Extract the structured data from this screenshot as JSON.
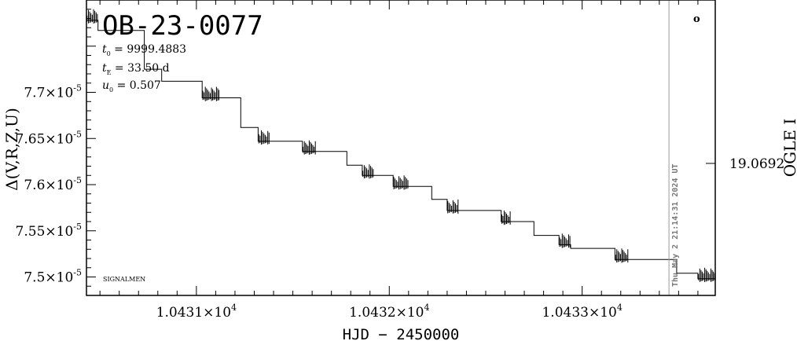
{
  "chart_data": {
    "type": "line",
    "title": "OB-23-0077",
    "xlabel": "HJD − 2450000",
    "ylabel_left": "Δ(V,R,Z,U)",
    "ylabel_right": "OGLE I",
    "params": [
      {
        "sym": "t",
        "sub": "0",
        "text": " = 9999.4883"
      },
      {
        "sym": "t",
        "sub": "E",
        "text": " = 33.50 d"
      },
      {
        "sym": "u",
        "sub": "0",
        "text": " = 0.507"
      }
    ],
    "corner_label": "SIGNALMEN",
    "timestamp": "Thu May  2 21:14:31 2024 UT",
    "right_marker": "o",
    "xlim": [
      10430.43,
      10433.69
    ],
    "ylim": [
      7.48e-05,
      7.8e-05
    ],
    "x_ticks": [
      {
        "value": 10431,
        "label": "1.0431×10"
      },
      {
        "value": 10432,
        "label": "1.0432×10"
      },
      {
        "value": 10433,
        "label": "1.0433×10"
      }
    ],
    "x_tick_exp": "4",
    "y_ticks": [
      {
        "value": 7.5e-05,
        "label": "7.5×10"
      },
      {
        "value": 7.55e-05,
        "label": "7.55×10"
      },
      {
        "value": 7.6e-05,
        "label": "7.6×10"
      },
      {
        "value": 7.65e-05,
        "label": "7.65×10"
      },
      {
        "value": 7.7e-05,
        "label": "7.7×10"
      }
    ],
    "y_tick_exp": "-5",
    "right_tick": {
      "value": 7.623e-05,
      "label": "19.0692"
    },
    "vline_x": 10433.45,
    "steps": [
      {
        "x0": 10430.43,
        "x1": 10430.49,
        "y": 7.778e-05,
        "noisy": true
      },
      {
        "x0": 10430.49,
        "x1": 10430.73,
        "y": 7.767e-05,
        "noisy": false
      },
      {
        "x0": 10430.73,
        "x1": 10430.82,
        "y": 7.725e-05,
        "noisy": false
      },
      {
        "x0": 10430.82,
        "x1": 10431.03,
        "y": 7.712e-05,
        "noisy": false
      },
      {
        "x0": 10431.03,
        "x1": 10431.12,
        "y": 7.694e-05,
        "noisy": true
      },
      {
        "x0": 10431.12,
        "x1": 10431.23,
        "y": 7.694e-05,
        "noisy": false
      },
      {
        "x0": 10431.23,
        "x1": 10431.32,
        "y": 7.662e-05,
        "noisy": false
      },
      {
        "x0": 10431.32,
        "x1": 10431.38,
        "y": 7.647e-05,
        "noisy": true
      },
      {
        "x0": 10431.38,
        "x1": 10431.55,
        "y": 7.647e-05,
        "noisy": false
      },
      {
        "x0": 10431.55,
        "x1": 10431.62,
        "y": 7.636e-05,
        "noisy": true
      },
      {
        "x0": 10431.62,
        "x1": 10431.78,
        "y": 7.636e-05,
        "noisy": false
      },
      {
        "x0": 10431.78,
        "x1": 10431.86,
        "y": 7.621e-05,
        "noisy": false
      },
      {
        "x0": 10431.86,
        "x1": 10431.92,
        "y": 7.61e-05,
        "noisy": true
      },
      {
        "x0": 10431.92,
        "x1": 10432.02,
        "y": 7.61e-05,
        "noisy": false
      },
      {
        "x0": 10432.02,
        "x1": 10432.1,
        "y": 7.598e-05,
        "noisy": true
      },
      {
        "x0": 10432.1,
        "x1": 10432.22,
        "y": 7.598e-05,
        "noisy": false
      },
      {
        "x0": 10432.22,
        "x1": 10432.3,
        "y": 7.584e-05,
        "noisy": false
      },
      {
        "x0": 10432.3,
        "x1": 10432.36,
        "y": 7.572e-05,
        "noisy": true
      },
      {
        "x0": 10432.36,
        "x1": 10432.58,
        "y": 7.572e-05,
        "noisy": false
      },
      {
        "x0": 10432.58,
        "x1": 10432.63,
        "y": 7.56e-05,
        "noisy": true
      },
      {
        "x0": 10432.63,
        "x1": 10432.75,
        "y": 7.56e-05,
        "noisy": false
      },
      {
        "x0": 10432.75,
        "x1": 10432.88,
        "y": 7.545e-05,
        "noisy": false
      },
      {
        "x0": 10432.88,
        "x1": 10432.94,
        "y": 7.535e-05,
        "noisy": true
      },
      {
        "x0": 10432.94,
        "x1": 10433.17,
        "y": 7.531e-05,
        "noisy": false
      },
      {
        "x0": 10433.17,
        "x1": 10433.24,
        "y": 7.519e-05,
        "noisy": true
      },
      {
        "x0": 10433.24,
        "x1": 10433.49,
        "y": 7.519e-05,
        "noisy": false
      },
      {
        "x0": 10433.49,
        "x1": 10433.6,
        "y": 7.504e-05,
        "noisy": false
      },
      {
        "x0": 10433.6,
        "x1": 10433.69,
        "y": 7.498e-05,
        "noisy": true
      }
    ]
  }
}
